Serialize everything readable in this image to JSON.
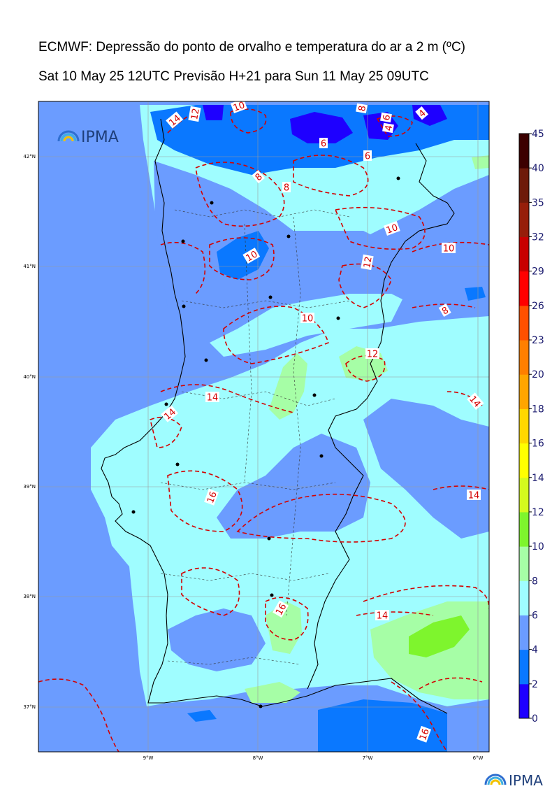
{
  "header": {
    "title": "ECMWF: Depressão do ponto de orvalho e temperatura do ar a 2 m (ºC)",
    "subtitle": "Sat 10 May 25 12UTC Previsão H+21 para Sun 11 May 25 09UTC"
  },
  "logos": {
    "map_logo": "IPMA",
    "footer_logo": "IPMA"
  },
  "axes": {
    "lat_labels": [
      "42°N",
      "41°N",
      "40°N",
      "39°N",
      "38°N",
      "37°N"
    ],
    "lon_labels": [
      "9°W",
      "8°W",
      "7°W",
      "6°W"
    ]
  },
  "colorbar": {
    "labels": [
      "0",
      "2",
      "4",
      "6",
      "8",
      "10",
      "12",
      "14",
      "16",
      "18",
      "20",
      "23",
      "26",
      "29",
      "32",
      "35",
      "40",
      "45"
    ],
    "colors": [
      "#1e00ff",
      "#0a78ff",
      "#6b9cff",
      "#9ffdff",
      "#a6fea6",
      "#7ef52d",
      "#d4fa1e",
      "#ffff00",
      "#ffd700",
      "#ffa500",
      "#ff7f00",
      "#ff5000",
      "#ff0000",
      "#c80000",
      "#961e0a",
      "#6e1a0a",
      "#3c0000"
    ]
  },
  "contour_labels": [
    "10",
    "14",
    "12",
    "8",
    "6",
    "4",
    "8",
    "6",
    "4",
    "6",
    "8",
    "10",
    "10",
    "12",
    "10",
    "8",
    "10",
    "12",
    "14",
    "14",
    "14",
    "16",
    "16",
    "14",
    "14",
    "16"
  ],
  "colors": {
    "sea": "#6b9cff",
    "dep_0_2": "#1e00ff",
    "dep_2_4": "#0a78ff",
    "dep_4_6": "#6b9cff",
    "dep_6_8": "#9ffdff",
    "dep_8_10": "#a6fea6",
    "dep_10_12": "#7ef52d",
    "temperature_contour": "#d40000"
  },
  "icons": {
    "logo_icon": "ipma-rainbow-icon"
  }
}
